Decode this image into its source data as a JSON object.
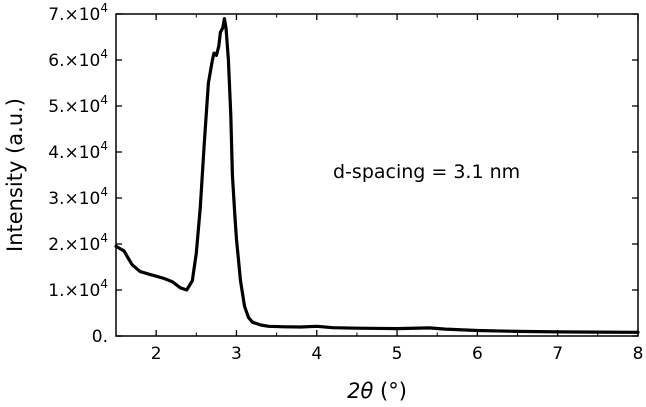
{
  "chart_data": {
    "type": "line",
    "title": "",
    "xlabel": "2θ (°)",
    "ylabel": "Intensity (a.u.)",
    "xlim": [
      1.5,
      8
    ],
    "ylim": [
      0,
      70000
    ],
    "grid": false,
    "x_ticks": [
      2,
      3,
      4,
      5,
      6,
      7,
      8
    ],
    "x_tick_labels": [
      "2",
      "3",
      "4",
      "5",
      "6",
      "7",
      "8"
    ],
    "y_ticks": [
      0,
      10000,
      20000,
      30000,
      40000,
      50000,
      60000,
      70000
    ],
    "y_tick_labels": [
      {
        "mantissa": "0.",
        "exp": ""
      },
      {
        "mantissa": "1.×10",
        "exp": "4"
      },
      {
        "mantissa": "2.×10",
        "exp": "4"
      },
      {
        "mantissa": "3.×10",
        "exp": "4"
      },
      {
        "mantissa": "4.×10",
        "exp": "4"
      },
      {
        "mantissa": "5.×10",
        "exp": "4"
      },
      {
        "mantissa": "6.×10",
        "exp": "4"
      },
      {
        "mantissa": "7.×10",
        "exp": "4"
      }
    ],
    "annotation": "d-spacing = 3.1 nm",
    "series": [
      {
        "color": "#000000",
        "x": [
          1.5,
          1.55,
          1.6,
          1.65,
          1.7,
          1.8,
          1.9,
          2.0,
          2.1,
          2.2,
          2.3,
          2.38,
          2.45,
          2.5,
          2.55,
          2.6,
          2.65,
          2.7,
          2.72,
          2.75,
          2.78,
          2.8,
          2.83,
          2.85,
          2.87,
          2.9,
          2.93,
          2.95,
          2.98,
          3.0,
          3.05,
          3.1,
          3.15,
          3.2,
          3.3,
          3.4,
          3.6,
          3.8,
          4.0,
          4.2,
          4.5,
          5.0,
          5.4,
          5.6,
          6.0,
          6.5,
          7.0,
          7.5,
          8.0
        ],
        "y": [
          19500,
          19000,
          18500,
          17000,
          15500,
          14000,
          13500,
          13000,
          12500,
          11800,
          10500,
          10000,
          12000,
          18000,
          28000,
          42000,
          55000,
          60000,
          61500,
          61000,
          63000,
          66000,
          67000,
          69000,
          67000,
          60000,
          48000,
          35000,
          26000,
          21000,
          12000,
          6500,
          4000,
          3000,
          2400,
          2100,
          2000,
          1950,
          2100,
          1800,
          1700,
          1600,
          1750,
          1500,
          1200,
          1000,
          900,
          850,
          800
        ]
      }
    ]
  }
}
